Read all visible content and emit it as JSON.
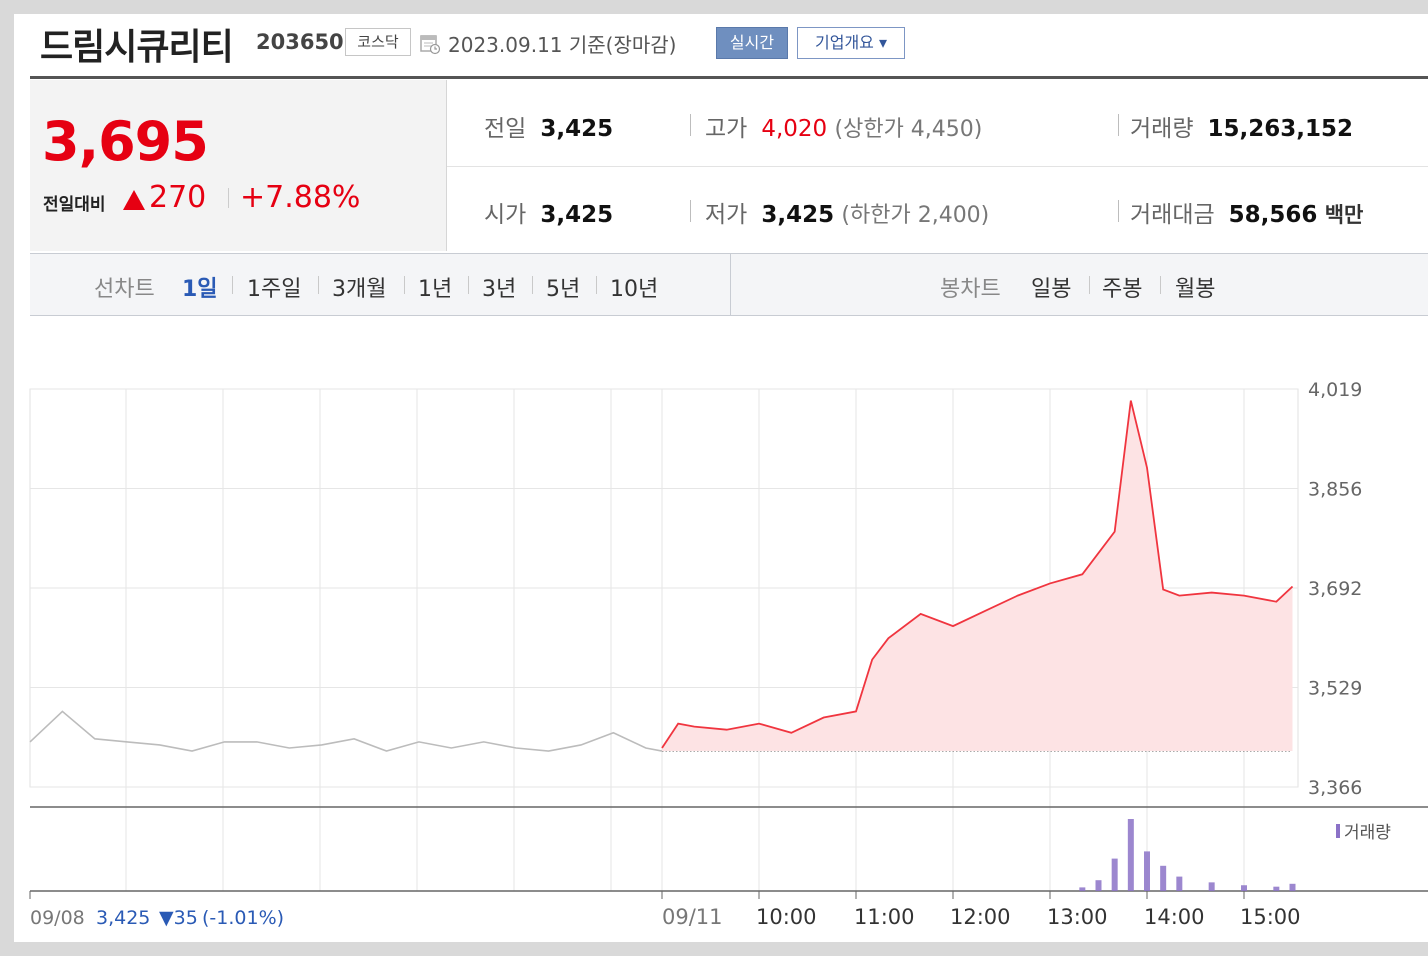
{
  "header": {
    "name": "드림시큐리티",
    "code": "203650",
    "market": "코스닥",
    "as_of": "2023.09.11 기준(장마감)",
    "realtime_label": "실시간",
    "overview_label": "기업개요 ▾"
  },
  "summary": {
    "price": "3,695",
    "change_label": "전일대비",
    "change": "270",
    "change_pct": "+7.88%",
    "direction": "up",
    "prev_close_label": "전일",
    "prev_close": "3,425",
    "open_label": "시가",
    "open": "3,425",
    "high_label": "고가",
    "high": "4,020",
    "upper_limit": "(상한가 4,450)",
    "low_label": "저가",
    "low": "3,425",
    "lower_limit": "(하한가 2,400)",
    "volume_label": "거래량",
    "volume": "15,263,152",
    "amount_label": "거래대금",
    "amount": "58,566",
    "amount_unit": "백만"
  },
  "periods": {
    "line_label": "선차트",
    "line_items": [
      "1일",
      "1주일",
      "3개월",
      "1년",
      "3년",
      "5년",
      "10년"
    ],
    "active": "1일",
    "candle_label": "봉차트",
    "candle_items": [
      "일봉",
      "주봉",
      "월봉"
    ]
  },
  "colors": {
    "up": "#e60012",
    "down_blue": "#2a5ab5",
    "line_prev": "#bcbcbc",
    "line_today": "#f0353f",
    "fill_today": "#fde3e4",
    "volume": "#8b72c7"
  },
  "chart_data": {
    "type": "line",
    "y_ticks": [
      "4,019",
      "3,856",
      "3,692",
      "3,529",
      "3,366"
    ],
    "ylim": [
      3366,
      4019
    ],
    "x_ticks": [
      "09/11",
      "10:00",
      "11:00",
      "12:00",
      "13:00",
      "14:00",
      "15:00"
    ],
    "volume_label": "거래량",
    "prev_day_caption": {
      "date": "09/08",
      "close": "3,425",
      "change": "▼35",
      "change_pct": "(-1.01%)"
    },
    "baseline": 3425,
    "series": [
      {
        "name": "09/08",
        "times": [
          "09:00",
          "09:20",
          "09:40",
          "10:00",
          "10:20",
          "10:40",
          "11:00",
          "11:20",
          "11:40",
          "12:00",
          "12:20",
          "12:40",
          "13:00",
          "13:20",
          "13:40",
          "14:00",
          "14:20",
          "14:40",
          "15:00",
          "15:20",
          "15:30"
        ],
        "values": [
          3440,
          3490,
          3445,
          3440,
          3435,
          3425,
          3440,
          3440,
          3430,
          3435,
          3445,
          3425,
          3440,
          3430,
          3440,
          3430,
          3425,
          3435,
          3455,
          3430,
          3425
        ]
      },
      {
        "name": "09/11",
        "times": [
          "09:00",
          "09:10",
          "09:20",
          "09:40",
          "10:00",
          "10:20",
          "10:40",
          "11:00",
          "11:10",
          "11:20",
          "11:40",
          "12:00",
          "12:20",
          "12:40",
          "13:00",
          "13:20",
          "13:40",
          "13:50",
          "14:00",
          "14:10",
          "14:20",
          "14:40",
          "15:00",
          "15:20",
          "15:30"
        ],
        "values": [
          3430,
          3470,
          3465,
          3460,
          3470,
          3455,
          3480,
          3490,
          3575,
          3610,
          3650,
          3630,
          3655,
          3680,
          3700,
          3715,
          3785,
          4000,
          3890,
          3690,
          3680,
          3685,
          3680,
          3670,
          3695
        ]
      }
    ],
    "volume": {
      "times": [
        "13:20",
        "13:30",
        "13:40",
        "13:50",
        "14:00",
        "14:10",
        "14:20",
        "14:40",
        "15:00",
        "15:20",
        "15:30"
      ],
      "relative": [
        0.05,
        0.15,
        0.45,
        1.0,
        0.55,
        0.35,
        0.2,
        0.12,
        0.08,
        0.06,
        0.1
      ]
    }
  }
}
